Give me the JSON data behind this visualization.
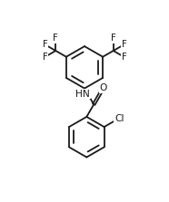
{
  "background_color": "#ffffff",
  "line_color": "#1a1a1a",
  "line_width": 1.3,
  "font_size": 7.2,
  "figsize": [
    1.86,
    2.23
  ],
  "dpi": 100,
  "xlim": [
    0,
    10
  ],
  "ylim": [
    0,
    12
  ]
}
